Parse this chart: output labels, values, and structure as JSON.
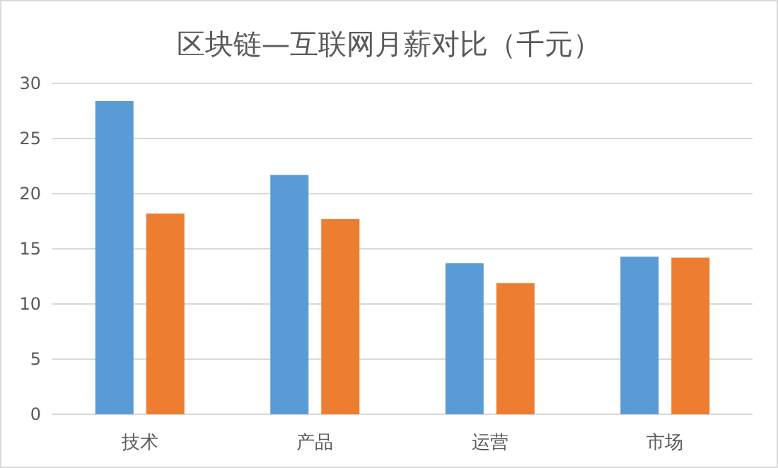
{
  "chart_data": {
    "type": "bar",
    "title": "区块链—互联网月薪对比（千元）",
    "categories": [
      "技术",
      "产品",
      "运营",
      "市场"
    ],
    "series": [
      {
        "color": "#5b9bd5",
        "values": [
          28.4,
          21.7,
          13.7,
          14.3
        ]
      },
      {
        "color": "#ed7d31",
        "values": [
          18.2,
          17.7,
          11.9,
          14.2
        ]
      }
    ],
    "ylim": [
      0,
      30
    ],
    "yticks": [
      0,
      5,
      10,
      15,
      20,
      25,
      30
    ],
    "grid": "y"
  }
}
